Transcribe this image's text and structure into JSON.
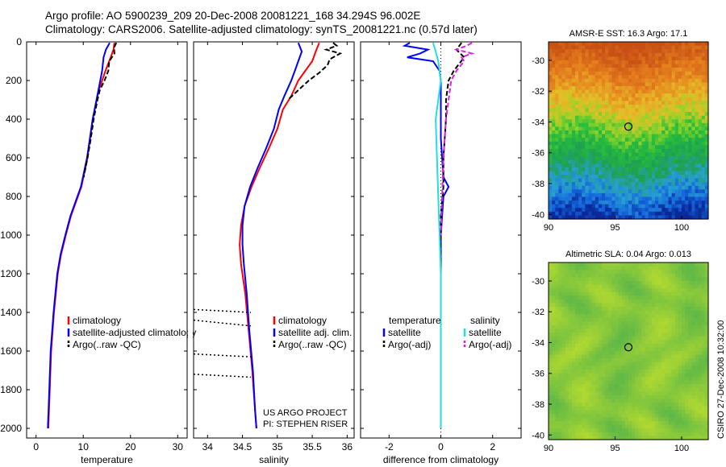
{
  "header": {
    "line1": "Argo profile: AO 5900239_209 20-Dec-2008 20081221_168 34.294S 96.002E",
    "line2": "Climatology: CARS2006. Satellite-adjusted climatology: synTS_20081221.nc (0.57d later)"
  },
  "side_label": "CSIRO 27-Dec-2008 10:32:00",
  "colors": {
    "climatology": "#ff0000",
    "satellite": "#0000ff",
    "argo": "#000000",
    "argo_adj": "#e020e0",
    "sat_salinity": "#20e0e0"
  },
  "chart_data": [
    {
      "type": "line",
      "title": "",
      "xlabel": "temperature",
      "ylabel": "",
      "xlim": [
        -2,
        32
      ],
      "ylim": [
        2050,
        0
      ],
      "xticks": [
        "0",
        "10",
        "20",
        "30"
      ],
      "yticks": [
        "0",
        "200",
        "400",
        "600",
        "800",
        "1000",
        "1200",
        "1400",
        "1600",
        "1800",
        "2000"
      ],
      "legend": [
        "climatology",
        "satellite-adjusted climatology",
        "Argo(..raw -QC)"
      ],
      "series": [
        {
          "name": "climatology",
          "depth": [
            5,
            40,
            80,
            150,
            250,
            400,
            600,
            750,
            900,
            1000,
            1100,
            1200,
            1400,
            1600,
            1800,
            2000
          ],
          "values": [
            16.6,
            16.4,
            15.8,
            14.7,
            13.3,
            12.0,
            10.9,
            9.6,
            7.4,
            6.3,
            5.3,
            4.6,
            3.8,
            3.2,
            2.9,
            2.6
          ]
        },
        {
          "name": "satellite",
          "depth": [
            5,
            40,
            80,
            150,
            250,
            400,
            600,
            750,
            900,
            1000,
            1100,
            1200,
            1400,
            1600,
            1800,
            2000
          ],
          "values": [
            15.6,
            14.8,
            14.3,
            14.0,
            13.2,
            12.0,
            10.8,
            9.5,
            7.3,
            6.2,
            5.2,
            4.5,
            3.7,
            3.1,
            2.8,
            2.5
          ]
        },
        {
          "name": "Argo",
          "depth": [
            5,
            30,
            60,
            100,
            150,
            200,
            250,
            300,
            400,
            500,
            600,
            700
          ],
          "values": [
            17.0,
            16.5,
            16.6,
            15.5,
            15.3,
            14.5,
            13.5,
            13.0,
            12.2,
            11.6,
            10.9,
            10.1
          ]
        }
      ]
    },
    {
      "type": "line",
      "title": "",
      "xlabel": "salinity",
      "ylabel": "",
      "xlim": [
        33.8,
        36.1
      ],
      "ylim": [
        2050,
        0
      ],
      "xticks": [
        "34",
        "34.5",
        "35",
        "35.5",
        "36"
      ],
      "legend": [
        "climatology",
        "satellite adj. clim.",
        "Argo(..raw -QC)"
      ],
      "annotation": [
        "US ARGO PROJECT",
        "PI: STEPHEN RISER"
      ],
      "series": [
        {
          "name": "climatology",
          "depth": [
            5,
            50,
            100,
            150,
            200,
            280,
            350,
            450,
            550,
            650,
            750,
            850,
            950,
            1050,
            1150,
            1300,
            1500,
            1700,
            1900,
            2000
          ],
          "values": [
            35.6,
            35.55,
            35.5,
            35.4,
            35.3,
            35.2,
            35.08,
            35.0,
            34.88,
            34.75,
            34.63,
            34.53,
            34.48,
            34.46,
            34.48,
            34.54,
            34.59,
            34.64,
            34.68,
            34.7
          ]
        },
        {
          "name": "satellite",
          "depth": [
            5,
            50,
            100,
            150,
            200,
            280,
            350,
            450,
            550,
            650,
            750,
            850,
            950,
            1050,
            1150,
            1300,
            1500,
            1700,
            1900,
            2000
          ],
          "values": [
            35.3,
            35.35,
            35.3,
            35.25,
            35.2,
            35.1,
            35.02,
            34.95,
            34.84,
            34.72,
            34.61,
            34.53,
            34.5,
            34.5,
            34.52,
            34.56,
            34.6,
            34.65,
            34.68,
            34.7
          ]
        },
        {
          "name": "Argo",
          "depth": [
            5,
            20,
            40,
            60,
            90,
            120,
            160,
            200,
            250,
            300
          ],
          "values": [
            35.8,
            35.85,
            35.7,
            35.9,
            35.75,
            35.72,
            35.6,
            35.45,
            35.3,
            35.15
          ]
        }
      ]
    },
    {
      "type": "line",
      "title": "",
      "xlabel": "difference from climatology",
      "ylabel": "",
      "xlim": [
        -3.1,
        3.1
      ],
      "ylim": [
        2050,
        0
      ],
      "xticks": [
        "-2",
        "0",
        "2"
      ],
      "legend": [
        "temperature",
        "satellite",
        "Argo(-adj)",
        "salinity",
        "satellite",
        "Argo(-adj)"
      ],
      "series": [
        {
          "name": "temperature satellite",
          "depth": [
            5,
            20,
            40,
            60,
            80,
            100,
            150,
            200,
            300,
            500,
            700,
            750,
            800,
            1000,
            1500,
            2000
          ],
          "values": [
            -1.2,
            -1.4,
            -0.5,
            -0.8,
            -1.3,
            -0.3,
            -0.05,
            0.0,
            0.0,
            0.0,
            0.1,
            0.3,
            0.1,
            0.0,
            0.0,
            0.0
          ]
        },
        {
          "name": "temperature Argo(-adj)",
          "depth": [
            5,
            40,
            80,
            150,
            200,
            300,
            400,
            600,
            750,
            900,
            1200,
            1300
          ],
          "values": [
            0.8,
            0.6,
            0.9,
            0.5,
            0.3,
            0.2,
            0.2,
            0.1,
            0.1,
            0.0,
            0.0,
            0.0
          ]
        },
        {
          "name": "salinity satellite",
          "depth": [
            5,
            50,
            100,
            150,
            200,
            300,
            400,
            600,
            800,
            1000,
            1200,
            1500,
            2000
          ],
          "values": [
            -0.3,
            -0.2,
            -0.1,
            -0.05,
            0.0,
            -0.1,
            -0.2,
            -0.15,
            -0.1,
            -0.05,
            0.0,
            0.0,
            0.0
          ]
        },
        {
          "name": "salinity Argo(-adj)",
          "depth": [
            5,
            20,
            40,
            60,
            80,
            100,
            150,
            200,
            300,
            400,
            600,
            800,
            1000
          ],
          "values": [
            1.2,
            1.0,
            0.6,
            1.2,
            0.8,
            0.9,
            0.6,
            0.4,
            0.3,
            0.2,
            0.1,
            0.05,
            0.0
          ]
        }
      ]
    },
    {
      "type": "heatmap",
      "title": "AMSR-E SST: 16.3 Argo: 17.1",
      "xlabel": "",
      "ylabel": "",
      "xlim": [
        90,
        102
      ],
      "ylim": [
        -40.3,
        -28.8
      ],
      "xticks": [
        "90",
        "95",
        "100"
      ],
      "yticks": [
        "-30",
        "-32",
        "-34",
        "-36",
        "-38",
        "-40"
      ],
      "marker": {
        "lon": 96.0,
        "lat": -34.3
      }
    },
    {
      "type": "heatmap",
      "title": "Altimetric SLA: 0.04 Argo: 0.013",
      "xlabel": "",
      "ylabel": "",
      "xlim": [
        90,
        102
      ],
      "ylim": [
        -40.3,
        -28.8
      ],
      "xticks": [
        "90",
        "95",
        "100"
      ],
      "yticks": [
        "-30",
        "-32",
        "-34",
        "-36",
        "-38",
        "-40"
      ],
      "marker": {
        "lon": 96.0,
        "lat": -34.3
      }
    }
  ]
}
